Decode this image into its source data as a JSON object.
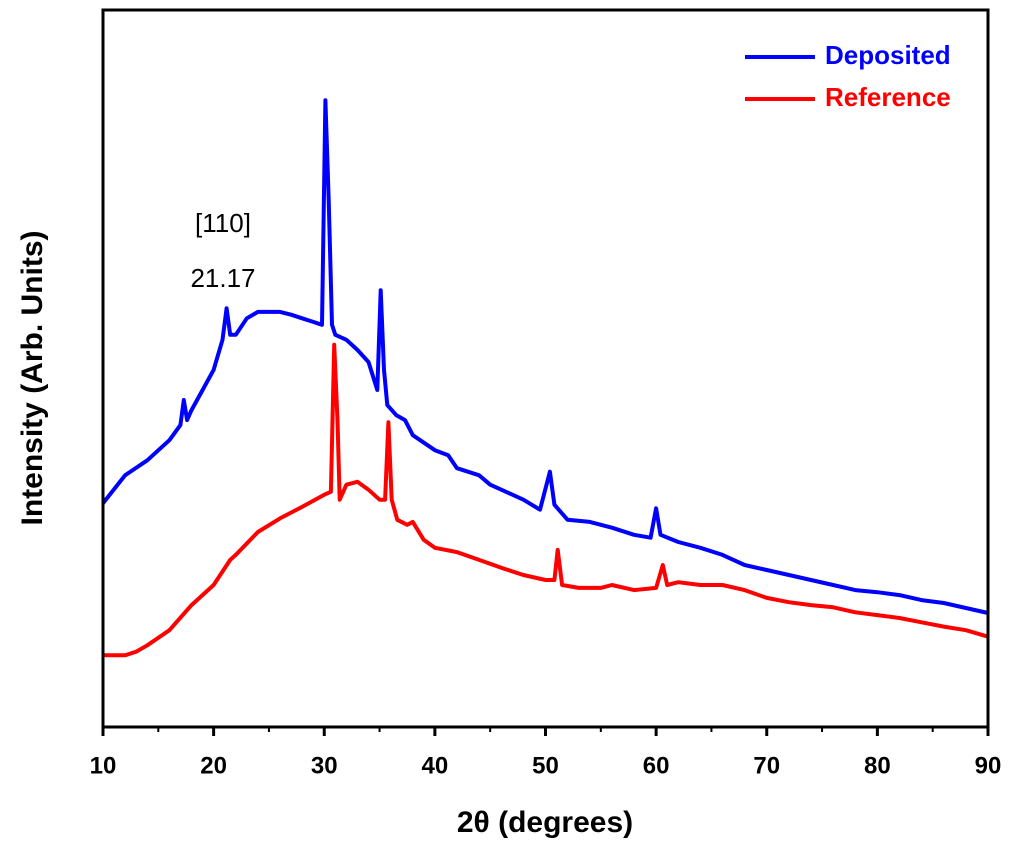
{
  "chart_data": {
    "type": "line",
    "x_label": "2θ (degrees)",
    "y_label": "Intensity (Arb. Units)",
    "annotations": [
      "[110]",
      "21.17"
    ],
    "xlim": [
      10,
      90
    ],
    "xticks": [
      10,
      20,
      30,
      40,
      50,
      60,
      70,
      80,
      90
    ],
    "xminorticks": [
      15,
      25,
      35,
      45,
      55,
      65,
      75,
      85
    ],
    "ylim": [
      0,
      100
    ],
    "legend": "upper right",
    "series": [
      {
        "name": "Deposited",
        "color": "#0000ff",
        "x": [
          10,
          12,
          14,
          16,
          17,
          17.3,
          17.6,
          18,
          19,
          20,
          20.8,
          21.17,
          21.5,
          22,
          23,
          24,
          25,
          26,
          27,
          28,
          29,
          29.8,
          30.1,
          30.4,
          30.7,
          31,
          32,
          33,
          34,
          34.8,
          35.1,
          35.4,
          35.7,
          36.5,
          37.3,
          38,
          40,
          41.2,
          42,
          44,
          45,
          46,
          48,
          49.5,
          50.4,
          50.8,
          52,
          54,
          56,
          58,
          59.5,
          60,
          60.4,
          62,
          64,
          66,
          68,
          70,
          72,
          74,
          76,
          78,
          80,
          82,
          84,
          86,
          88,
          90
        ],
        "values": [
          31.2,
          35.1,
          37.2,
          40,
          42.1,
          45.6,
          42.8,
          44.2,
          47,
          49.8,
          54,
          58.4,
          54.7,
          54.7,
          57,
          57.9,
          57.9,
          57.9,
          57.5,
          57,
          56.5,
          56.1,
          87.4,
          73.5,
          56.1,
          54.7,
          54,
          52.6,
          50.9,
          47,
          60.9,
          49.8,
          44.9,
          43.5,
          42.8,
          40.7,
          38.6,
          37.9,
          36.1,
          35.1,
          33.8,
          33.1,
          31.7,
          30.3,
          35.6,
          31,
          28.9,
          28.6,
          27.8,
          26.8,
          26.4,
          30.5,
          26.8,
          25.8,
          25,
          24,
          22.6,
          21.9,
          21.2,
          20.5,
          19.8,
          19.1,
          18.8,
          18.4,
          17.7,
          17.3,
          16.6,
          15.9
        ]
      },
      {
        "name": "Reference",
        "color": "#ff0000",
        "x": [
          10,
          12,
          13,
          14,
          16,
          18,
          20,
          21.5,
          22,
          24,
          26,
          28,
          30,
          30.6,
          30.9,
          31.2,
          31.4,
          32,
          33,
          34,
          35,
          35.5,
          35.8,
          36.1,
          36.6,
          37.5,
          38,
          39,
          40,
          42,
          44,
          46,
          48,
          50,
          50.8,
          51.1,
          51.5,
          53,
          55,
          56,
          58,
          60,
          60.6,
          61,
          62,
          64,
          66,
          68,
          70,
          72,
          74,
          76,
          78,
          80,
          82,
          84,
          86,
          88,
          90
        ],
        "values": [
          10,
          10,
          10.5,
          11.4,
          13.5,
          17,
          19.8,
          23.3,
          24,
          27.2,
          29.1,
          30.7,
          32.4,
          32.8,
          53.3,
          42.8,
          31.7,
          33.8,
          34.2,
          33.1,
          31.7,
          31.7,
          42.5,
          31.7,
          28.9,
          28.2,
          28.6,
          26.1,
          25,
          24.4,
          23.3,
          22.2,
          21.2,
          20.5,
          20.5,
          24.7,
          19.8,
          19.4,
          19.4,
          19.8,
          19.1,
          19.4,
          22.6,
          19.8,
          20.2,
          19.8,
          19.8,
          19.1,
          18,
          17.4,
          17,
          16.7,
          16,
          15.6,
          15.2,
          14.6,
          14,
          13.5,
          12.6
        ]
      }
    ]
  }
}
